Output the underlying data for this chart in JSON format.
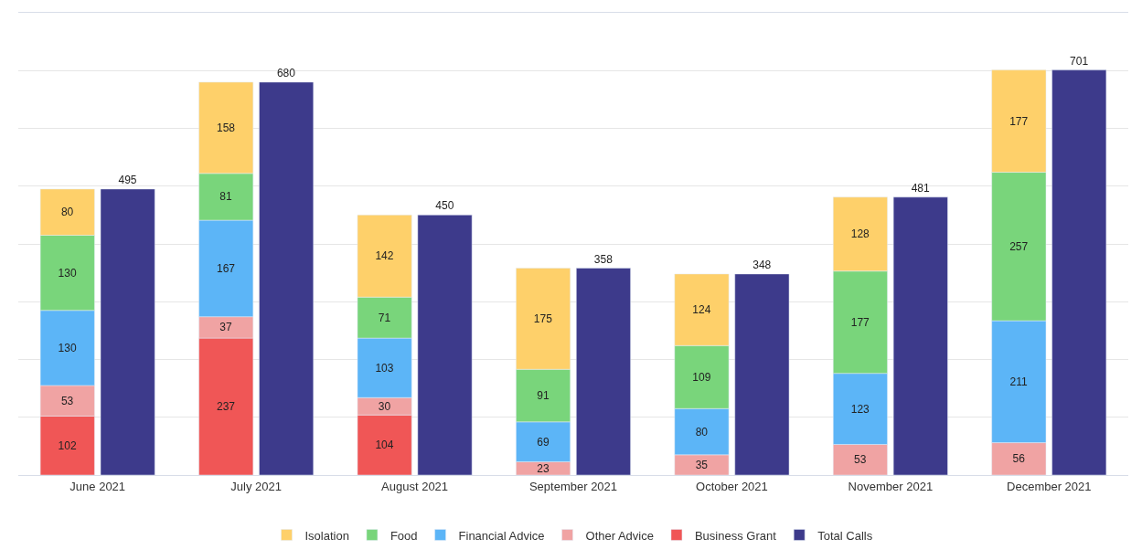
{
  "chart_data": {
    "type": "bar",
    "stacked": true,
    "categories": [
      "June 2021",
      "July 2021",
      "August 2021",
      "September 2021",
      "October 2021",
      "November 2021",
      "December 2021"
    ],
    "series": [
      {
        "name": "Business Grant",
        "color": "#f05656",
        "values": [
          102,
          237,
          104,
          null,
          null,
          null,
          null
        ]
      },
      {
        "name": "Other Advice",
        "color": "#f0a3a3",
        "values": [
          53,
          37,
          30,
          23,
          35,
          53,
          56
        ]
      },
      {
        "name": "Financial Advice",
        "color": "#5cb5f7",
        "values": [
          130,
          167,
          103,
          69,
          80,
          123,
          211
        ]
      },
      {
        "name": "Food",
        "color": "#79d57b",
        "values": [
          130,
          81,
          71,
          91,
          109,
          177,
          257
        ]
      },
      {
        "name": "Isolation",
        "color": "#fed06a",
        "values": [
          80,
          158,
          142,
          175,
          124,
          128,
          177
        ]
      },
      {
        "name": "Total Calls",
        "color": "#3d3a8b",
        "axis": "y2",
        "values": [
          495,
          680,
          450,
          358,
          348,
          481,
          701
        ]
      }
    ],
    "data_labels": true,
    "ylim": [
      0,
      800
    ],
    "y2lim": [
      0,
      800
    ],
    "yticks": [
      {
        "value": 0,
        "label": null
      },
      {
        "value": 100,
        "label": null
      },
      {
        "value": 200,
        "label": null
      },
      {
        "value": 300,
        "label": null
      },
      {
        "value": 400,
        "label": null
      },
      {
        "value": 500,
        "label": null
      },
      {
        "value": 600,
        "label": null
      },
      {
        "value": 700,
        "label": null
      },
      {
        "value": 800,
        "label": null
      }
    ],
    "tick_labels": "x",
    "grid": "y",
    "legend": "bottom"
  }
}
